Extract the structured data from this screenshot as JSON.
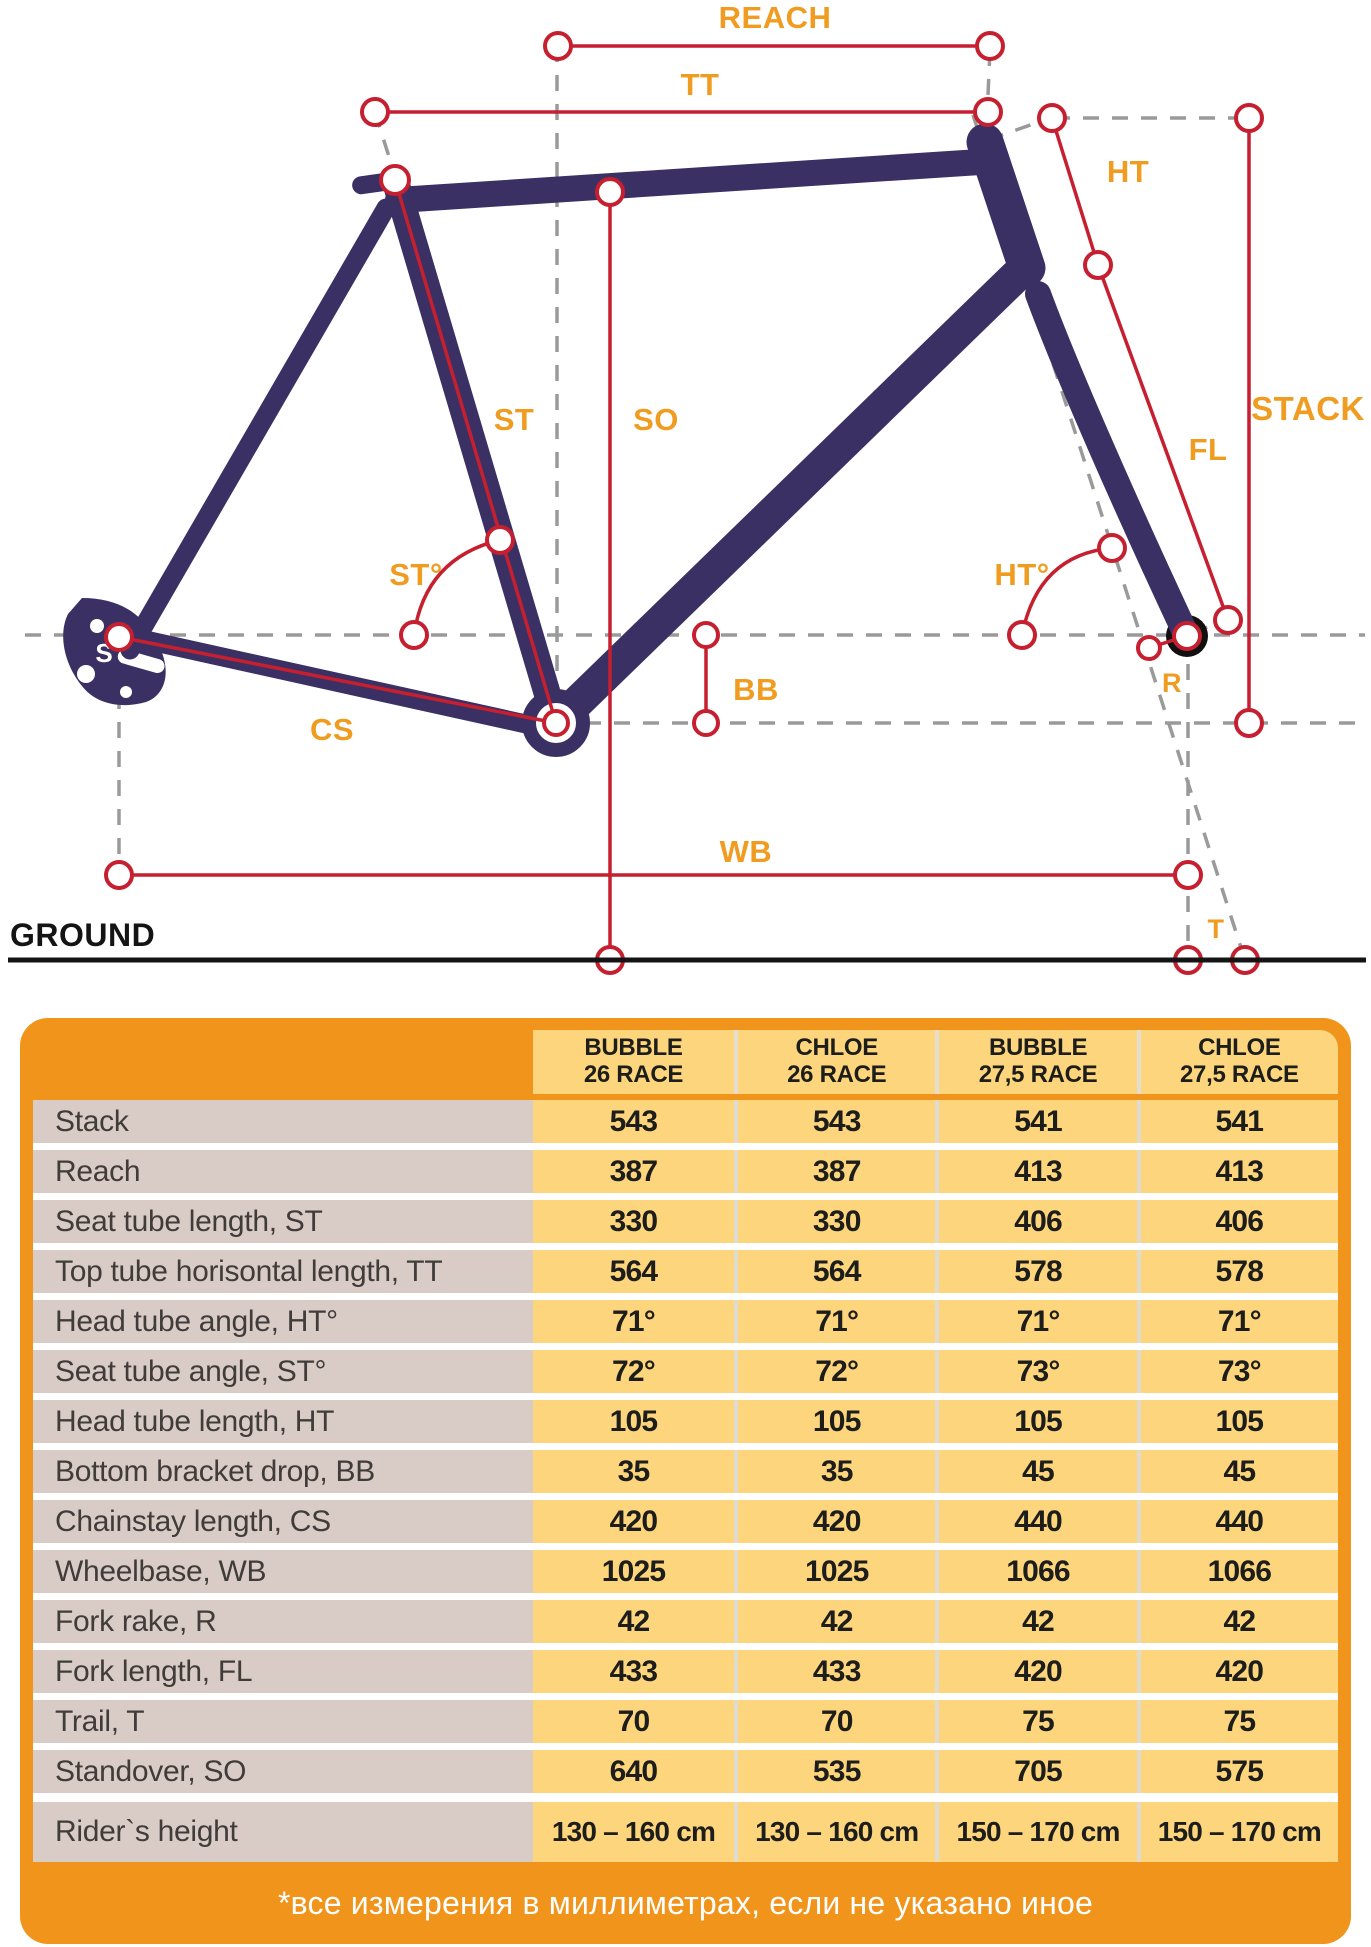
{
  "diagram": {
    "labels": {
      "reach": "REACH",
      "tt": "TT",
      "ht": "HT",
      "stack": "STACK",
      "st": "ST",
      "so": "SO",
      "fl": "FL",
      "st_angle": "ST°",
      "ht_angle": "HT°",
      "bb": "BB",
      "cs": "CS",
      "r": "R",
      "wb": "WB",
      "t": "T",
      "ground": "GROUND"
    },
    "colors": {
      "frame": "#3b3064",
      "measure_line": "#c51f30",
      "label": "#f09c20",
      "dashed_line": "#9a9a9a",
      "ground_line": "#141414"
    }
  },
  "table": {
    "columns": [
      {
        "model": "BUBBLE",
        "size": "26 RACE"
      },
      {
        "model": "CHLOE",
        "size": "26 RACE"
      },
      {
        "model": "BUBBLE",
        "size": "27,5 RACE"
      },
      {
        "model": "CHLOE",
        "size": "27,5 RACE"
      }
    ],
    "rows": [
      {
        "label": "Stack",
        "values": [
          "543",
          "543",
          "541",
          "541"
        ]
      },
      {
        "label": "Reach",
        "values": [
          "387",
          "387",
          "413",
          "413"
        ]
      },
      {
        "label": "Seat tube length, ST",
        "values": [
          "330",
          "330",
          "406",
          "406"
        ]
      },
      {
        "label": "Top tube horisontal length, TT",
        "values": [
          "564",
          "564",
          "578",
          "578"
        ]
      },
      {
        "label": "Head tube angle, HT°",
        "values": [
          "71°",
          "71°",
          "71°",
          "71°"
        ]
      },
      {
        "label": "Seat tube angle, ST°",
        "values": [
          "72°",
          "72°",
          "73°",
          "73°"
        ]
      },
      {
        "label": "Head tube length, HT",
        "values": [
          "105",
          "105",
          "105",
          "105"
        ]
      },
      {
        "label": "Bottom bracket drop, BB",
        "values": [
          "35",
          "35",
          "45",
          "45"
        ]
      },
      {
        "label": "Chainstay length, CS",
        "values": [
          "420",
          "420",
          "440",
          "440"
        ]
      },
      {
        "label": "Wheelbase, WB",
        "values": [
          "1025",
          "1025",
          "1066",
          "1066"
        ]
      },
      {
        "label": "Fork rake, R",
        "values": [
          "42",
          "42",
          "42",
          "42"
        ]
      },
      {
        "label": "Fork length, FL",
        "values": [
          "433",
          "433",
          "420",
          "420"
        ]
      },
      {
        "label": "Trail, T",
        "values": [
          "70",
          "70",
          "75",
          "75"
        ]
      },
      {
        "label": "Standover, SO",
        "values": [
          "640",
          "535",
          "705",
          "575"
        ]
      }
    ],
    "rider_row": {
      "label": "Rider`s height",
      "values": [
        "130 – 160 cm",
        "130 – 160 cm",
        "150 – 170 cm",
        "150 – 170 cm"
      ]
    },
    "footnote": "*все измерения в миллиметрах, если не указано иное",
    "colors": {
      "orange": "#f0941b",
      "value_cell": "#fcd57d",
      "label_cell": "#d9cbc5",
      "text": "#1d1d1b"
    }
  }
}
